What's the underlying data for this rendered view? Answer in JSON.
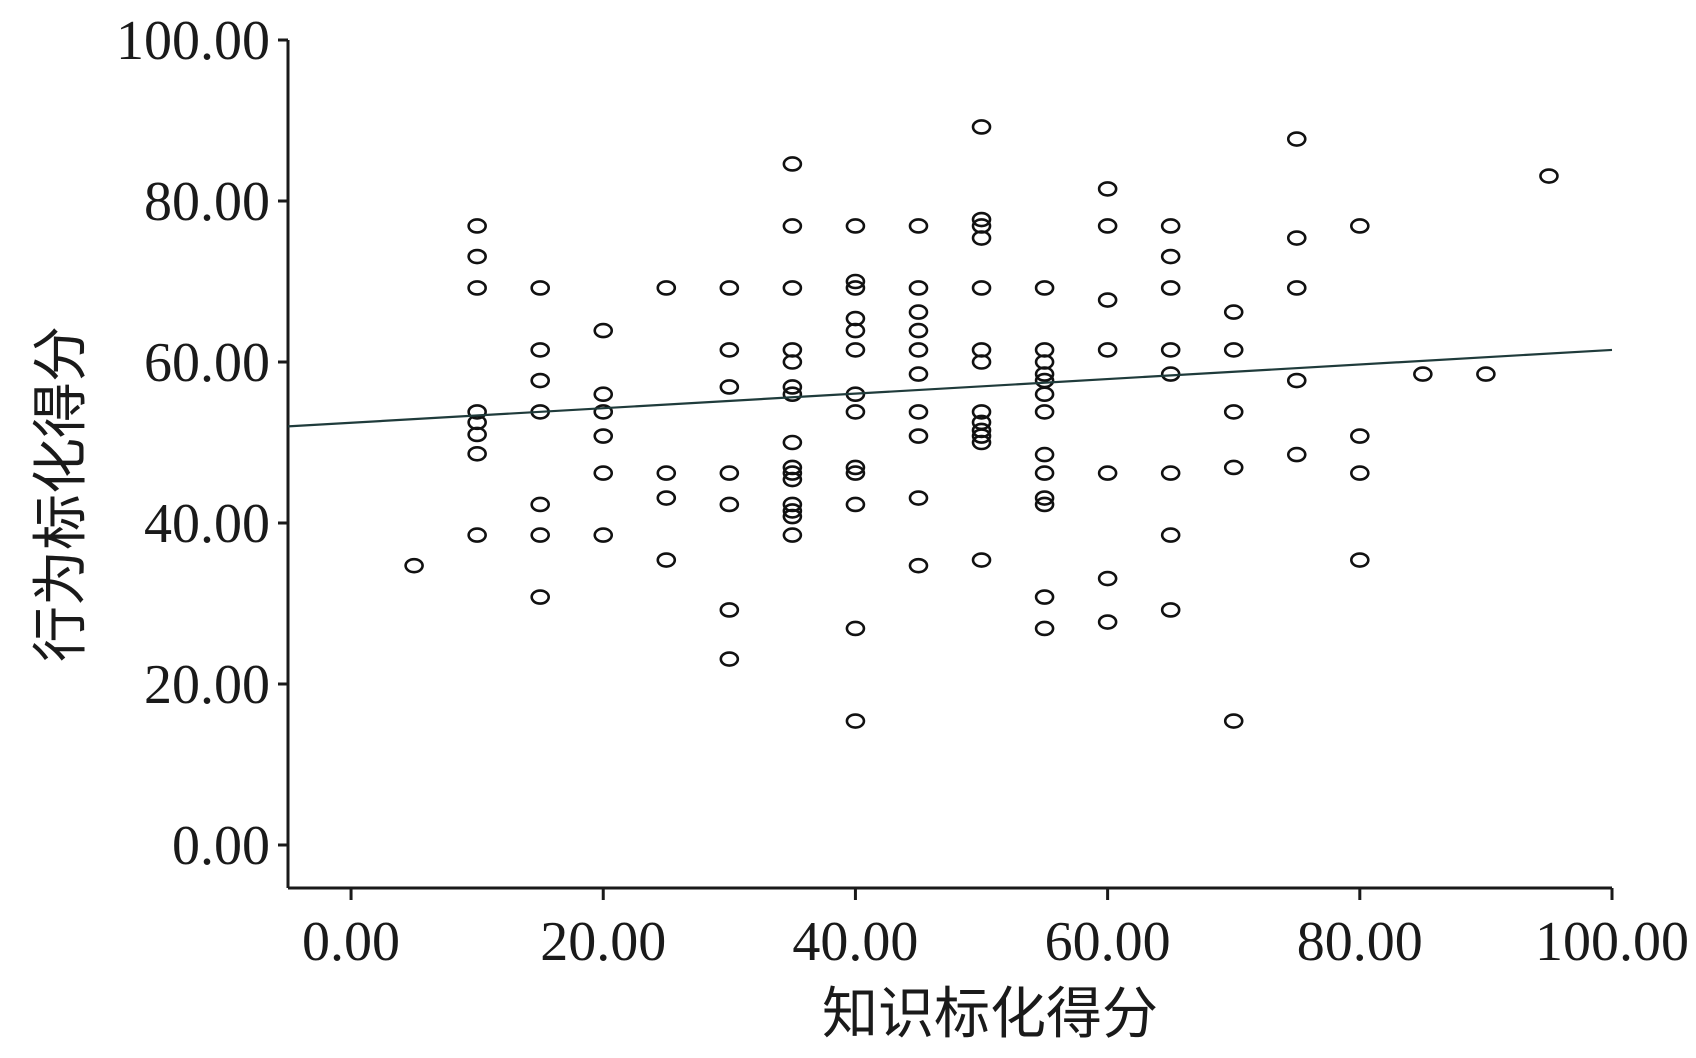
{
  "chart_data": {
    "type": "scatter",
    "title": "",
    "xlabel": "知识标化得分",
    "ylabel": "行为标化得分",
    "xlim": [
      -5,
      100
    ],
    "ylim": [
      0,
      100
    ],
    "x_ticks": [
      0,
      20,
      40,
      60,
      80,
      100
    ],
    "y_ticks": [
      0,
      20,
      40,
      60,
      80,
      100
    ],
    "x_tick_labels": [
      "0.00",
      "20.00",
      "40.00",
      "60.00",
      "80.00",
      "100.00"
    ],
    "y_tick_labels": [
      "0.00",
      "20.00",
      "40.00",
      "60.00",
      "80.00",
      "100.00"
    ],
    "grid": false,
    "legend": "none",
    "fit_line": {
      "x": [
        -5,
        100
      ],
      "y": [
        52.0,
        61.5
      ]
    },
    "points": [
      [
        5,
        34.7
      ],
      [
        10,
        76.9
      ],
      [
        10,
        73.1
      ],
      [
        10,
        69.2
      ],
      [
        10,
        53.8
      ],
      [
        10,
        52.5
      ],
      [
        10,
        51.0
      ],
      [
        10,
        48.6
      ],
      [
        10,
        38.5
      ],
      [
        15,
        69.2
      ],
      [
        15,
        61.5
      ],
      [
        15,
        57.7
      ],
      [
        15,
        53.8
      ],
      [
        15,
        42.3
      ],
      [
        15,
        38.5
      ],
      [
        15,
        30.8
      ],
      [
        20,
        63.9
      ],
      [
        20,
        56.0
      ],
      [
        20,
        53.8
      ],
      [
        20,
        50.8
      ],
      [
        20,
        46.2
      ],
      [
        20,
        38.5
      ],
      [
        25,
        69.2
      ],
      [
        25,
        46.2
      ],
      [
        25,
        43.1
      ],
      [
        25,
        35.4
      ],
      [
        30,
        69.2
      ],
      [
        30,
        61.5
      ],
      [
        30,
        56.9
      ],
      [
        30,
        46.2
      ],
      [
        30,
        42.3
      ],
      [
        30,
        29.2
      ],
      [
        30,
        23.1
      ],
      [
        35,
        84.6
      ],
      [
        35,
        76.9
      ],
      [
        35,
        69.2
      ],
      [
        35,
        61.5
      ],
      [
        35,
        60.0
      ],
      [
        35,
        56.9
      ],
      [
        35,
        56.0
      ],
      [
        35,
        50.0
      ],
      [
        35,
        46.9
      ],
      [
        35,
        46.2
      ],
      [
        35,
        45.4
      ],
      [
        35,
        42.3
      ],
      [
        35,
        41.5
      ],
      [
        35,
        40.8
      ],
      [
        35,
        38.5
      ],
      [
        40,
        76.9
      ],
      [
        40,
        70.0
      ],
      [
        40,
        69.2
      ],
      [
        40,
        65.4
      ],
      [
        40,
        63.9
      ],
      [
        40,
        61.5
      ],
      [
        40,
        56.0
      ],
      [
        40,
        53.8
      ],
      [
        40,
        46.9
      ],
      [
        40,
        46.2
      ],
      [
        40,
        42.3
      ],
      [
        40,
        26.9
      ],
      [
        40,
        15.4
      ],
      [
        45,
        76.9
      ],
      [
        45,
        69.2
      ],
      [
        45,
        66.2
      ],
      [
        45,
        63.9
      ],
      [
        45,
        61.5
      ],
      [
        45,
        58.5
      ],
      [
        45,
        53.8
      ],
      [
        45,
        50.8
      ],
      [
        45,
        43.1
      ],
      [
        45,
        34.7
      ],
      [
        50,
        89.2
      ],
      [
        50,
        77.7
      ],
      [
        50,
        76.9
      ],
      [
        50,
        75.4
      ],
      [
        50,
        69.2
      ],
      [
        50,
        61.5
      ],
      [
        50,
        60.0
      ],
      [
        50,
        53.8
      ],
      [
        50,
        52.5
      ],
      [
        50,
        51.5
      ],
      [
        50,
        50.8
      ],
      [
        50,
        50.0
      ],
      [
        50,
        35.4
      ],
      [
        55,
        69.2
      ],
      [
        55,
        61.5
      ],
      [
        55,
        60.0
      ],
      [
        55,
        58.5
      ],
      [
        55,
        57.7
      ],
      [
        55,
        56.0
      ],
      [
        55,
        53.8
      ],
      [
        55,
        48.5
      ],
      [
        55,
        46.2
      ],
      [
        55,
        43.1
      ],
      [
        55,
        42.3
      ],
      [
        55,
        30.8
      ],
      [
        55,
        26.9
      ],
      [
        60,
        81.5
      ],
      [
        60,
        76.9
      ],
      [
        60,
        67.7
      ],
      [
        60,
        61.5
      ],
      [
        60,
        46.2
      ],
      [
        60,
        33.1
      ],
      [
        60,
        27.7
      ],
      [
        65,
        76.9
      ],
      [
        65,
        73.1
      ],
      [
        65,
        69.2
      ],
      [
        65,
        61.5
      ],
      [
        65,
        58.5
      ],
      [
        65,
        46.2
      ],
      [
        65,
        38.5
      ],
      [
        65,
        29.2
      ],
      [
        70,
        66.2
      ],
      [
        70,
        61.5
      ],
      [
        70,
        53.8
      ],
      [
        70,
        46.9
      ],
      [
        70,
        15.4
      ],
      [
        75,
        87.7
      ],
      [
        75,
        75.4
      ],
      [
        75,
        69.2
      ],
      [
        75,
        57.7
      ],
      [
        75,
        48.5
      ],
      [
        80,
        76.9
      ],
      [
        80,
        50.8
      ],
      [
        80,
        46.2
      ],
      [
        80,
        35.4
      ],
      [
        85,
        58.5
      ],
      [
        90,
        58.5
      ],
      [
        95,
        83.1
      ]
    ]
  }
}
